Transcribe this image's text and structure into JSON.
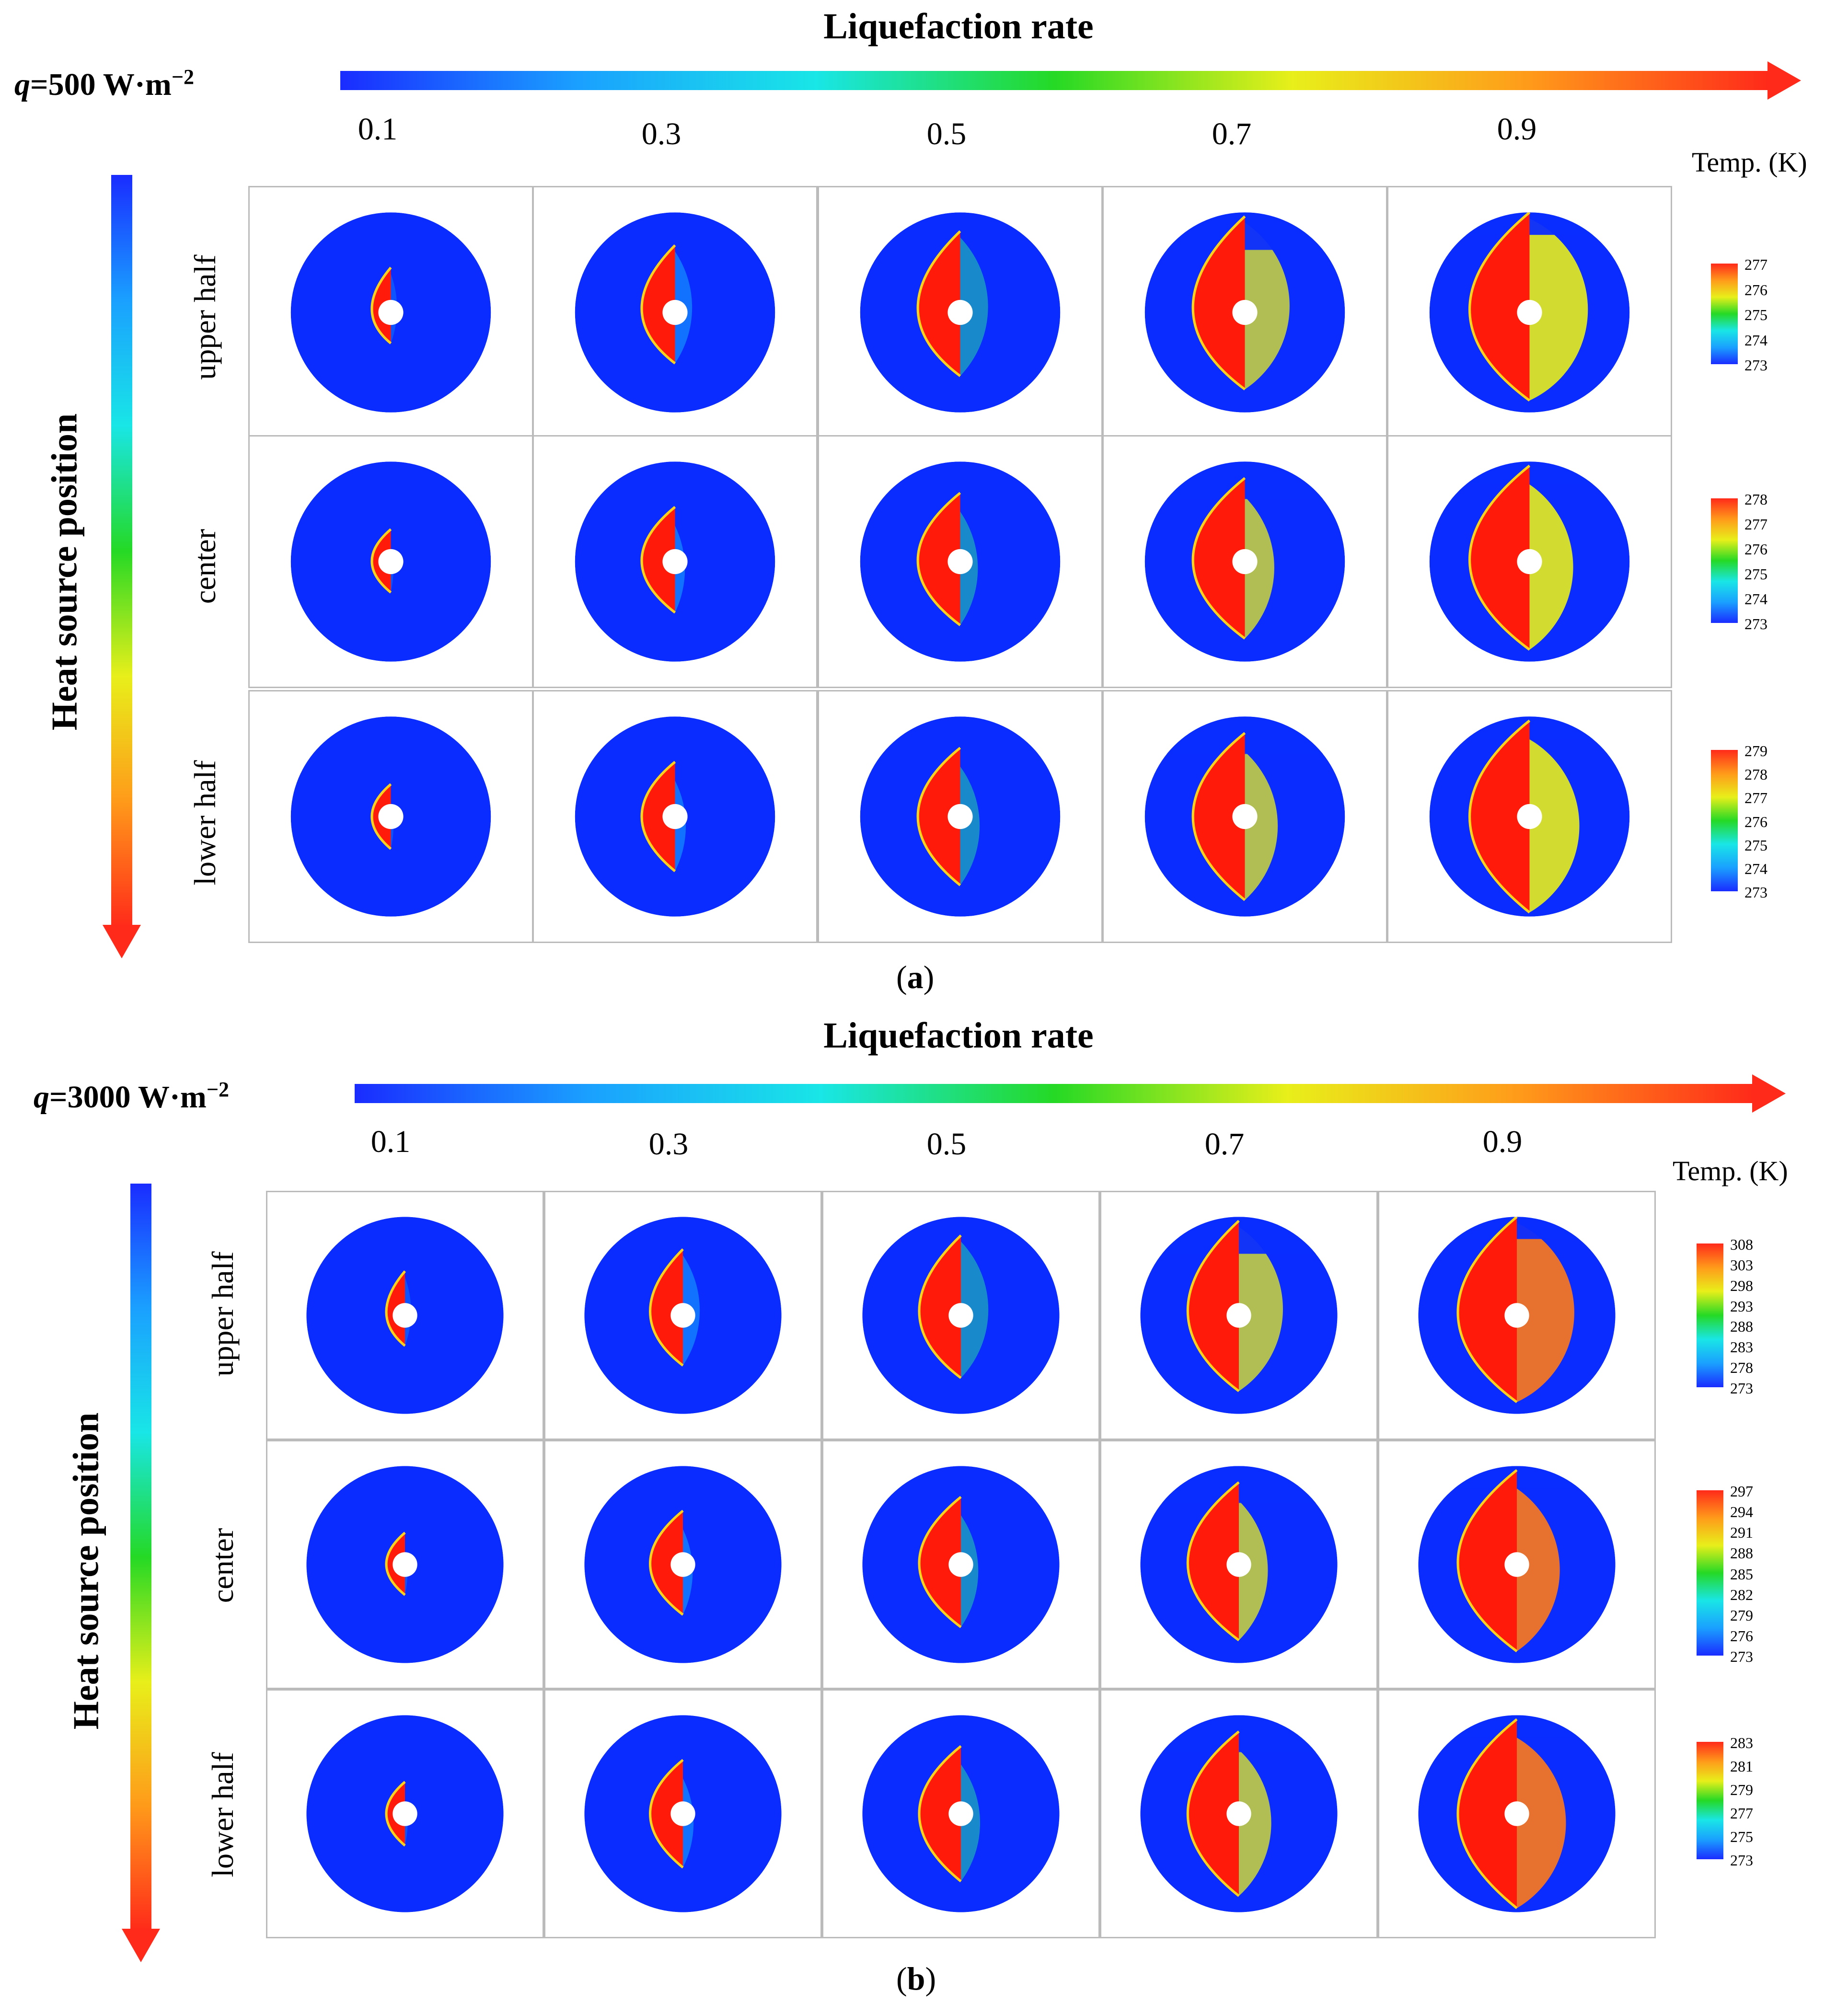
{
  "colors": {
    "jet": [
      "#1a2cff",
      "#1aa0ff",
      "#19e6e6",
      "#25d925",
      "#e8ef1a",
      "#ff9a1a",
      "#ff2a1a"
    ],
    "solid": "#0a2cff",
    "melt": "#ff1a0a",
    "frame": "#bbbbbb"
  },
  "axis_labels": {
    "horizontal": "Liquefaction rate",
    "vertical": "Heat source position",
    "rates": [
      "0.1",
      "0.3",
      "0.5",
      "0.7",
      "0.9"
    ],
    "positions": [
      "upper half",
      "center",
      "lower half"
    ]
  },
  "panels": [
    {
      "q_prefix": "q",
      "q_value": "=500 W·m",
      "q_exp": "−2",
      "caption_letter": "a",
      "temp_label": "Temp. (K)",
      "colorbars": [
        {
          "row": "upper half",
          "ticks": [
            "277",
            "276",
            "275",
            "274",
            "273"
          ]
        },
        {
          "row": "center",
          "ticks": [
            "278",
            "277",
            "276",
            "275",
            "274",
            "273"
          ]
        },
        {
          "row": "lower half",
          "ticks": [
            "279",
            "278",
            "277",
            "276",
            "275",
            "274",
            "273"
          ]
        }
      ]
    },
    {
      "q_prefix": "q",
      "q_value": "=3000 W·m",
      "q_exp": "−2",
      "caption_letter": "b",
      "temp_label": "Temp. (K)",
      "colorbars": [
        {
          "row": "upper half",
          "ticks": [
            "308",
            "303",
            "298",
            "293",
            "288",
            "283",
            "278",
            "273"
          ]
        },
        {
          "row": "center",
          "ticks": [
            "297",
            "294",
            "291",
            "288",
            "285",
            "282",
            "279",
            "276",
            "273"
          ]
        },
        {
          "row": "lower half",
          "ticks": [
            "283",
            "281",
            "279",
            "277",
            "275",
            "273"
          ]
        }
      ]
    }
  ]
}
